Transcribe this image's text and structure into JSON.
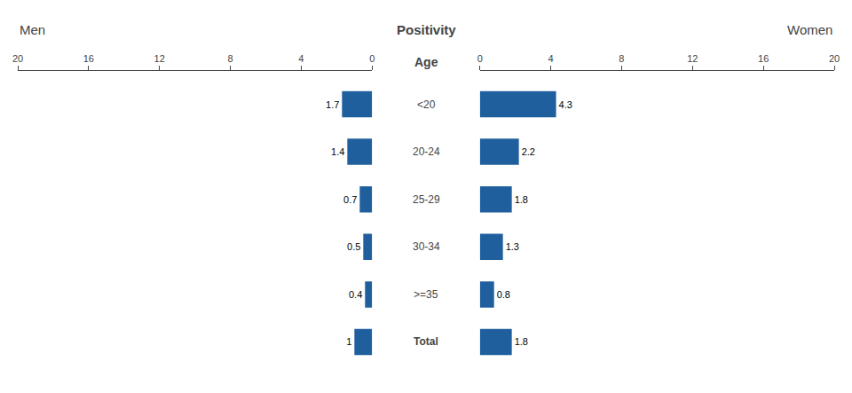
{
  "chart_data": [
    {
      "type": "bar",
      "orientation": "horizontal",
      "title": "Men",
      "ylabel": "Age",
      "annotations": [
        "Positivity"
      ],
      "categories": [
        "<20",
        "20-24",
        "25-29",
        "30-34",
        ">=35",
        "Total"
      ],
      "values": [
        1.7,
        1.4,
        0.7,
        0.5,
        0.4,
        1.0
      ],
      "color": "#1F5F9E",
      "xlim": [
        20,
        0
      ],
      "xticks": [
        20,
        16,
        12,
        8,
        4,
        0
      ],
      "data_labels": true,
      "grid": false
    },
    {
      "type": "bar",
      "orientation": "horizontal",
      "title": "Women",
      "categories": [
        "<20",
        "20-24",
        "25-29",
        "30-34",
        ">=35",
        "Total"
      ],
      "values": [
        4.3,
        2.2,
        1.8,
        1.3,
        0.8,
        1.8
      ],
      "color": "#1F5F9E",
      "xlim": [
        0,
        20
      ],
      "xticks": [
        0,
        4,
        8,
        12,
        16,
        20
      ],
      "data_labels": true,
      "grid": false
    }
  ]
}
